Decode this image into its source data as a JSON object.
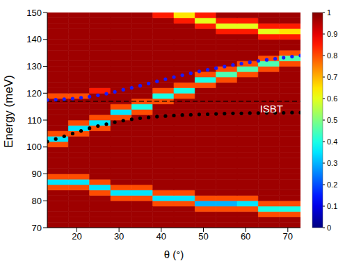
{
  "chart_data": {
    "type": "heatmap",
    "xlabel": "θ (°)",
    "ylabel": "Energy (meV)",
    "xlim": [
      13,
      73
    ],
    "xticks": [
      20,
      30,
      40,
      50,
      60,
      70
    ],
    "ylim": [
      70,
      150
    ],
    "yticks": [
      70,
      80,
      90,
      100,
      110,
      120,
      130,
      140,
      150
    ],
    "grid": false,
    "heatmap": {
      "x_edges": [
        13,
        18,
        23,
        28,
        33,
        38,
        43,
        48,
        53,
        58,
        63,
        68,
        73
      ],
      "y_edges": [
        70,
        72,
        74,
        76,
        78,
        80,
        82,
        84,
        86,
        88,
        90,
        92,
        94,
        96,
        98,
        100,
        102,
        104,
        106,
        108,
        110,
        112,
        114,
        116,
        118,
        120,
        122,
        124,
        126,
        128,
        130,
        132,
        134,
        136,
        138,
        140,
        142,
        144,
        146,
        148,
        150
      ],
      "cells": [
        [
          0.97,
          0.97,
          0.97,
          0.97,
          0.97,
          0.97,
          0.97,
          0.97,
          0.97,
          0.97,
          0.97,
          0.97
        ],
        [
          0.97,
          0.97,
          0.97,
          0.97,
          0.97,
          0.97,
          0.97,
          0.97,
          0.97,
          0.97,
          0.97,
          0.97
        ],
        [
          0.97,
          0.97,
          0.97,
          0.97,
          0.97,
          0.97,
          0.97,
          0.97,
          0.97,
          0.97,
          0.8,
          0.8
        ],
        [
          0.97,
          0.97,
          0.97,
          0.97,
          0.97,
          0.97,
          0.97,
          0.8,
          0.8,
          0.8,
          0.4,
          0.4
        ],
        [
          0.97,
          0.97,
          0.97,
          0.97,
          0.97,
          0.8,
          0.8,
          0.3,
          0.3,
          0.35,
          0.8,
          0.8
        ],
        [
          0.97,
          0.97,
          0.97,
          0.8,
          0.8,
          0.35,
          0.35,
          0.8,
          0.8,
          0.8,
          0.97,
          0.97
        ],
        [
          0.97,
          0.97,
          0.8,
          0.35,
          0.35,
          0.8,
          0.8,
          0.97,
          0.97,
          0.97,
          0.97,
          0.97
        ],
        [
          0.8,
          0.8,
          0.35,
          0.8,
          0.8,
          0.97,
          0.97,
          0.97,
          0.97,
          0.97,
          0.97,
          0.97
        ],
        [
          0.35,
          0.35,
          0.8,
          0.97,
          0.97,
          0.97,
          0.97,
          0.97,
          0.97,
          0.97,
          0.97,
          0.97
        ],
        [
          0.8,
          0.8,
          0.97,
          0.97,
          0.97,
          0.97,
          0.97,
          0.97,
          0.97,
          0.97,
          0.97,
          0.97
        ],
        [
          0.97,
          0.97,
          0.97,
          0.97,
          0.97,
          0.97,
          0.97,
          0.97,
          0.97,
          0.97,
          0.97,
          0.97
        ],
        [
          0.97,
          0.97,
          0.97,
          0.97,
          0.97,
          0.97,
          0.97,
          0.97,
          0.97,
          0.97,
          0.97,
          0.97
        ],
        [
          0.97,
          0.97,
          0.97,
          0.97,
          0.97,
          0.97,
          0.97,
          0.97,
          0.97,
          0.97,
          0.97,
          0.97
        ],
        [
          0.97,
          0.97,
          0.97,
          0.97,
          0.97,
          0.97,
          0.97,
          0.97,
          0.97,
          0.97,
          0.97,
          0.97
        ],
        [
          0.97,
          0.97,
          0.97,
          0.97,
          0.97,
          0.97,
          0.97,
          0.97,
          0.97,
          0.97,
          0.97,
          0.97
        ],
        [
          0.8,
          0.97,
          0.97,
          0.97,
          0.97,
          0.97,
          0.97,
          0.97,
          0.97,
          0.97,
          0.97,
          0.97
        ],
        [
          0.35,
          0.97,
          0.97,
          0.97,
          0.97,
          0.97,
          0.97,
          0.97,
          0.97,
          0.97,
          0.97,
          0.97
        ],
        [
          0.8,
          0.8,
          0.97,
          0.97,
          0.97,
          0.97,
          0.97,
          0.97,
          0.97,
          0.97,
          0.97,
          0.97
        ],
        [
          0.97,
          0.35,
          0.8,
          0.97,
          0.97,
          0.97,
          0.97,
          0.97,
          0.97,
          0.97,
          0.97,
          0.97
        ],
        [
          0.97,
          0.8,
          0.35,
          0.97,
          0.97,
          0.97,
          0.97,
          0.97,
          0.97,
          0.97,
          0.97,
          0.97
        ],
        [
          0.97,
          0.97,
          0.8,
          0.8,
          0.97,
          0.97,
          0.97,
          0.97,
          0.97,
          0.97,
          0.97,
          0.97
        ],
        [
          0.97,
          0.97,
          0.97,
          0.35,
          0.8,
          0.97,
          0.97,
          0.97,
          0.97,
          0.97,
          0.97,
          0.97
        ],
        [
          0.97,
          0.97,
          0.97,
          0.8,
          0.4,
          0.97,
          0.97,
          0.97,
          0.97,
          0.97,
          0.97,
          0.97
        ],
        [
          0.97,
          0.97,
          0.97,
          0.97,
          0.8,
          0.8,
          0.97,
          0.97,
          0.97,
          0.97,
          0.97,
          0.97
        ],
        [
          0.8,
          0.8,
          0.97,
          0.97,
          0.97,
          0.4,
          0.8,
          0.97,
          0.97,
          0.97,
          0.97,
          0.97
        ],
        [
          0.97,
          0.97,
          0.85,
          0.97,
          0.97,
          0.8,
          0.4,
          0.97,
          0.97,
          0.97,
          0.97,
          0.97
        ],
        [
          0.97,
          0.97,
          0.97,
          0.97,
          0.97,
          0.97,
          0.8,
          0.8,
          0.97,
          0.97,
          0.97,
          0.97
        ],
        [
          0.97,
          0.97,
          0.97,
          0.97,
          0.97,
          0.97,
          0.97,
          0.4,
          0.8,
          0.97,
          0.97,
          0.97
        ],
        [
          0.97,
          0.97,
          0.97,
          0.97,
          0.97,
          0.97,
          0.97,
          0.8,
          0.45,
          0.8,
          0.97,
          0.97
        ],
        [
          0.97,
          0.97,
          0.97,
          0.97,
          0.97,
          0.97,
          0.97,
          0.97,
          0.8,
          0.45,
          0.8,
          0.97
        ],
        [
          0.97,
          0.97,
          0.97,
          0.97,
          0.97,
          0.97,
          0.97,
          0.97,
          0.97,
          0.8,
          0.45,
          0.8
        ],
        [
          0.97,
          0.97,
          0.97,
          0.97,
          0.97,
          0.97,
          0.97,
          0.97,
          0.97,
          0.97,
          0.8,
          0.45
        ],
        [
          0.97,
          0.97,
          0.97,
          0.97,
          0.97,
          0.97,
          0.97,
          0.97,
          0.97,
          0.97,
          0.97,
          0.8
        ],
        [
          0.97,
          0.97,
          0.97,
          0.97,
          0.97,
          0.97,
          0.97,
          0.97,
          0.97,
          0.97,
          0.97,
          0.97
        ],
        [
          0.97,
          0.97,
          0.97,
          0.97,
          0.97,
          0.97,
          0.97,
          0.97,
          0.97,
          0.97,
          0.97,
          0.97
        ],
        [
          0.97,
          0.97,
          0.97,
          0.97,
          0.97,
          0.97,
          0.97,
          0.97,
          0.97,
          0.97,
          0.85,
          0.85
        ],
        [
          0.97,
          0.97,
          0.97,
          0.97,
          0.97,
          0.97,
          0.97,
          0.97,
          0.85,
          0.85,
          0.6,
          0.65
        ],
        [
          0.97,
          0.97,
          0.97,
          0.97,
          0.97,
          0.97,
          0.97,
          0.85,
          0.6,
          0.6,
          0.85,
          0.85
        ],
        [
          0.97,
          0.97,
          0.97,
          0.97,
          0.97,
          0.97,
          0.85,
          0.6,
          0.85,
          0.85,
          0.97,
          0.97
        ],
        [
          0.97,
          0.97,
          0.97,
          0.97,
          0.97,
          0.85,
          0.65,
          0.85,
          0.97,
          0.97,
          0.97,
          0.97
        ]
      ],
      "colorbar": {
        "range": [
          0,
          1
        ],
        "ticks": [
          0,
          0.1,
          0.2,
          0.3,
          0.4,
          0.5,
          0.6,
          0.7,
          0.8,
          0.9,
          1
        ]
      }
    },
    "series": [
      {
        "type": "scatter",
        "marker": "circle",
        "line_style": "none",
        "color": "#000000",
        "x": [
          13,
          15,
          17,
          19,
          21,
          23,
          25,
          27,
          29,
          31,
          33,
          35,
          37,
          39,
          41,
          43,
          45,
          47,
          49,
          51,
          53,
          55,
          57,
          59,
          61,
          63,
          65,
          67,
          69,
          71,
          73
        ],
        "values": [
          102,
          103,
          104,
          105,
          106,
          107,
          107.8,
          108.5,
          109.2,
          109.8,
          110.3,
          110.7,
          111,
          111.3,
          111.5,
          111.7,
          111.9,
          112,
          112.1,
          112.2,
          112.3,
          112.4,
          112.5,
          112.5,
          112.6,
          112.6,
          112.7,
          112.7,
          112.7,
          112.8,
          112.8
        ]
      },
      {
        "type": "scatter",
        "marker": "circle",
        "line_style": "none",
        "color": "#1a1aff",
        "x": [
          13,
          15,
          17,
          19,
          21,
          23,
          25,
          27,
          29,
          31,
          33,
          35,
          37,
          39,
          41,
          43,
          45,
          47,
          49,
          51,
          53,
          55,
          57,
          59,
          61,
          63,
          65,
          67,
          69,
          71,
          73
        ],
        "values": [
          117.5,
          117.6,
          117.8,
          118,
          118.3,
          118.7,
          119.2,
          119.8,
          120.5,
          121.3,
          122,
          122.8,
          123.6,
          124.4,
          125.2,
          126,
          126.7,
          127.4,
          128.1,
          128.7,
          129.3,
          129.9,
          130.5,
          131,
          131.5,
          132,
          132.4,
          132.8,
          133.2,
          133.6,
          134
        ]
      }
    ],
    "annotations": [
      {
        "text": "ISBT",
        "y": 117,
        "line_style": "dashed",
        "color": "#000000"
      }
    ]
  }
}
